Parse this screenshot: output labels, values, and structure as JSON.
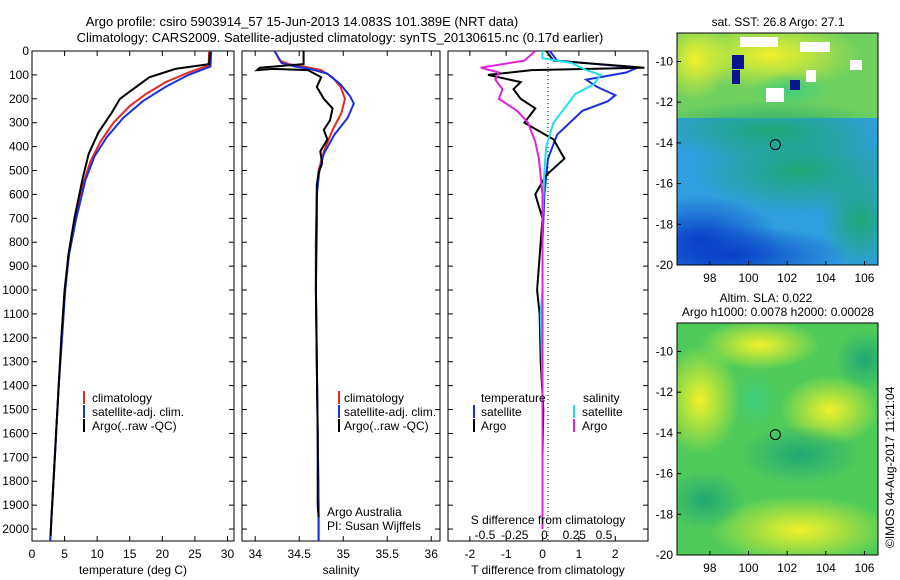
{
  "header": {
    "line1": "Argo profile: csiro 5903914_57 15-Jun-2013 14.083S 101.389E (NRT data)",
    "line2": "Climatology: CARS2009. Satellite-adjusted climatology: synTS_20130615.nc (0.17d earlier)"
  },
  "colors": {
    "climatology": "#e8281e",
    "satellite": "#1c2fe0",
    "argo": "#000000",
    "salinity_satellite": "#22e0e8",
    "salinity_argo": "#e020e0"
  },
  "credits": {
    "argo_line1": "Argo Australia",
    "argo_line2": "PI: Susan Wijffels",
    "imos": "©IMOS 04-Aug-2017 11:21:04"
  },
  "chart_data": [
    {
      "id": "temperature",
      "type": "line",
      "xlabel": "temperature (deg C)",
      "xlim": [
        0,
        31
      ],
      "xticks": [
        0,
        5,
        10,
        15,
        20,
        25,
        30
      ],
      "ylim": [
        2050,
        0
      ],
      "yticks": [
        0,
        100,
        200,
        300,
        400,
        500,
        600,
        700,
        800,
        900,
        1000,
        1100,
        1200,
        1300,
        1400,
        1500,
        1600,
        1700,
        1800,
        1900,
        2000
      ],
      "legend": [
        "climatology",
        "satellite-adj. clim.",
        "Argo(..raw -QC)"
      ],
      "series": [
        {
          "name": "climatology",
          "color_key": "climatology",
          "points": [
            [
              27.2,
              0
            ],
            [
              27.1,
              60
            ],
            [
              24,
              90
            ],
            [
              20.5,
              130
            ],
            [
              17.5,
              180
            ],
            [
              15,
              230
            ],
            [
              12.5,
              300
            ],
            [
              10.5,
              380
            ],
            [
              9,
              460
            ],
            [
              7.8,
              560
            ],
            [
              6.6,
              700
            ],
            [
              5.6,
              850
            ],
            [
              5.1,
              1000
            ],
            [
              4.6,
              1200
            ],
            [
              4.1,
              1400
            ],
            [
              3.7,
              1600
            ],
            [
              3.3,
              1800
            ],
            [
              3.0,
              1950
            ],
            [
              2.8,
              2050
            ]
          ]
        },
        {
          "name": "satellite-adj. clim.",
          "color_key": "satellite",
          "points": [
            [
              27.5,
              0
            ],
            [
              27.4,
              65
            ],
            [
              24,
              100
            ],
            [
              20.5,
              150
            ],
            [
              17,
              210
            ],
            [
              14,
              280
            ],
            [
              11.5,
              360
            ],
            [
              9.6,
              440
            ],
            [
              8.2,
              540
            ],
            [
              6.8,
              700
            ],
            [
              5.7,
              850
            ],
            [
              5.1,
              1000
            ],
            [
              4.6,
              1200
            ],
            [
              4.1,
              1400
            ],
            [
              3.7,
              1600
            ],
            [
              3.3,
              1800
            ],
            [
              3.0,
              1950
            ],
            [
              2.8,
              2050
            ]
          ]
        },
        {
          "name": "Argo(..raw -QC)",
          "color_key": "argo",
          "points": [
            [
              27.3,
              5
            ],
            [
              27.2,
              55
            ],
            [
              22,
              75
            ],
            [
              18,
              110
            ],
            [
              15.5,
              160
            ],
            [
              13.5,
              200
            ],
            [
              12.2,
              260
            ],
            [
              10.2,
              340
            ],
            [
              8.7,
              430
            ],
            [
              7.8,
              530
            ],
            [
              6.5,
              700
            ],
            [
              5.6,
              850
            ],
            [
              5.0,
              1000
            ],
            [
              4.5,
              1200
            ],
            [
              4.1,
              1400
            ],
            [
              3.7,
              1600
            ],
            [
              3.3,
              1800
            ],
            [
              3.0,
              1950
            ],
            [
              2.85,
              2030
            ]
          ]
        }
      ]
    },
    {
      "id": "salinity",
      "type": "line",
      "xlabel": "salinity",
      "xlim": [
        33.85,
        36.1
      ],
      "xticks": [
        34,
        34.5,
        35,
        35.5,
        36
      ],
      "ylim": [
        2050,
        0
      ],
      "legend": [
        "climatology",
        "satellite-adj. clim.",
        "Argo(..raw -QC)"
      ],
      "series": [
        {
          "name": "climatology",
          "color_key": "climatology",
          "points": [
            [
              34.22,
              0
            ],
            [
              34.28,
              40
            ],
            [
              34.38,
              55
            ],
            [
              34.55,
              65
            ],
            [
              34.75,
              80
            ],
            [
              34.88,
              110
            ],
            [
              34.97,
              150
            ],
            [
              35.02,
              200
            ],
            [
              34.98,
              260
            ],
            [
              34.88,
              330
            ],
            [
              34.78,
              420
            ],
            [
              34.72,
              500
            ],
            [
              34.7,
              600
            ],
            [
              34.69,
              800
            ],
            [
              34.69,
              1000
            ],
            [
              34.7,
              1300
            ],
            [
              34.71,
              1600
            ],
            [
              34.72,
              1900
            ],
            [
              34.72,
              2050
            ]
          ]
        },
        {
          "name": "satellite-adj. clim.",
          "color_key": "satellite",
          "points": [
            [
              34.22,
              0
            ],
            [
              34.3,
              50
            ],
            [
              34.45,
              65
            ],
            [
              34.62,
              75
            ],
            [
              34.82,
              95
            ],
            [
              34.97,
              140
            ],
            [
              35.08,
              190
            ],
            [
              35.12,
              220
            ],
            [
              35.05,
              280
            ],
            [
              34.9,
              350
            ],
            [
              34.78,
              430
            ],
            [
              34.73,
              500
            ],
            [
              34.7,
              600
            ],
            [
              34.69,
              800
            ],
            [
              34.69,
              1000
            ],
            [
              34.7,
              1300
            ],
            [
              34.71,
              1600
            ],
            [
              34.72,
              1900
            ],
            [
              34.72,
              2050
            ]
          ]
        },
        {
          "name": "Argo(..raw -QC)",
          "color_key": "argo",
          "points": [
            [
              34.55,
              0
            ],
            [
              34.55,
              55
            ],
            [
              34.05,
              70
            ],
            [
              34.02,
              80
            ],
            [
              34.2,
              75
            ],
            [
              34.6,
              80
            ],
            [
              34.75,
              110
            ],
            [
              34.7,
              150
            ],
            [
              34.78,
              200
            ],
            [
              34.88,
              240
            ],
            [
              34.85,
              290
            ],
            [
              34.78,
              330
            ],
            [
              34.82,
              370
            ],
            [
              34.74,
              420
            ],
            [
              34.76,
              470
            ],
            [
              34.72,
              510
            ],
            [
              34.7,
              560
            ],
            [
              34.7,
              700
            ],
            [
              34.69,
              1000
            ],
            [
              34.7,
              1300
            ],
            [
              34.71,
              1600
            ],
            [
              34.71,
              1900
            ],
            [
              34.72,
              1950
            ]
          ]
        }
      ]
    },
    {
      "id": "difference",
      "type": "line",
      "xlabel": "T difference from climatology",
      "xlabel_top": "S difference from climatology",
      "xlim": [
        -2.6,
        2.9
      ],
      "xticks": [
        -2,
        -1,
        0,
        1,
        2
      ],
      "top_ticks": [
        "-0.5",
        "-0.25",
        "0",
        "0.25",
        "0.5"
      ],
      "ylim": [
        2050,
        0
      ],
      "legend": {
        "temperature_title": "temperature",
        "salinity_title": "salinity",
        "temperature": [
          "satellite",
          "Argo"
        ],
        "salinity": [
          "satellite",
          "Argo"
        ]
      },
      "series": [
        {
          "name": "temperature satellite",
          "color_key": "satellite",
          "points": [
            [
              0.2,
              0
            ],
            [
              0.4,
              40
            ],
            [
              2.6,
              70
            ],
            [
              2.3,
              90
            ],
            [
              1.2,
              120
            ],
            [
              1.5,
              150
            ],
            [
              2.0,
              185
            ],
            [
              1.8,
              210
            ],
            [
              1.1,
              250
            ],
            [
              0.4,
              350
            ],
            [
              0.15,
              450
            ],
            [
              0.05,
              600
            ],
            [
              0.0,
              800
            ],
            [
              0.0,
              1200
            ],
            [
              0.0,
              1600
            ],
            [
              0.0,
              2000
            ]
          ]
        },
        {
          "name": "temperature Argo",
          "color_key": "argo",
          "points": [
            [
              0.1,
              0
            ],
            [
              0.3,
              40
            ],
            [
              2.8,
              70
            ],
            [
              -0.3,
              80
            ],
            [
              -1.5,
              100
            ],
            [
              -0.6,
              130
            ],
            [
              -0.8,
              160
            ],
            [
              -0.6,
              200
            ],
            [
              -0.2,
              240
            ],
            [
              -0.5,
              300
            ],
            [
              0.3,
              370
            ],
            [
              0.6,
              450
            ],
            [
              0.1,
              520
            ],
            [
              -0.2,
              600
            ],
            [
              0.0,
              700
            ],
            [
              -0.1,
              900
            ],
            [
              -0.15,
              1000
            ],
            [
              -0.08,
              1100
            ],
            [
              -0.05,
              1300
            ],
            [
              0.02,
              1500
            ],
            [
              0.0,
              1700
            ],
            [
              0.0,
              2000
            ]
          ]
        },
        {
          "name": "salinity satellite",
          "color_key": "salinity_satellite",
          "points": [
            [
              0.0,
              0
            ],
            [
              0.0,
              30
            ],
            [
              0.8,
              50
            ],
            [
              1.2,
              80
            ],
            [
              1.6,
              100
            ],
            [
              1.4,
              140
            ],
            [
              0.9,
              180
            ],
            [
              0.7,
              220
            ],
            [
              0.3,
              300
            ],
            [
              0.1,
              400
            ],
            [
              0.05,
              500
            ],
            [
              0.0,
              700
            ],
            [
              0.0,
              1000
            ],
            [
              -0.05,
              1100
            ],
            [
              0.0,
              1400
            ],
            [
              0.0,
              1700
            ],
            [
              0.0,
              2000
            ]
          ]
        },
        {
          "name": "salinity Argo",
          "color_key": "salinity_argo",
          "points": [
            [
              -0.2,
              0
            ],
            [
              -0.5,
              40
            ],
            [
              -1.7,
              70
            ],
            [
              -1.2,
              90
            ],
            [
              -1.3,
              120
            ],
            [
              -1.1,
              160
            ],
            [
              -1.2,
              200
            ],
            [
              -0.7,
              250
            ],
            [
              -0.4,
              300
            ],
            [
              -0.2,
              380
            ],
            [
              -0.1,
              450
            ],
            [
              0.0,
              600
            ],
            [
              0.0,
              800
            ],
            [
              0.0,
              1000
            ],
            [
              0.0,
              1300
            ],
            [
              0.0,
              1600
            ],
            [
              0.0,
              2000
            ]
          ]
        }
      ]
    },
    {
      "id": "sst_map",
      "type": "heatmap",
      "title": "sat. SST: 26.8  Argo: 27.1",
      "xlim": [
        96.3,
        106.7
      ],
      "ylim": [
        -20,
        -8.6
      ],
      "xticks": [
        98,
        100,
        102,
        104,
        106
      ],
      "yticks": [
        -10,
        -12,
        -14,
        -16,
        -18,
        -20
      ],
      "marker": [
        101.389,
        -14.083
      ]
    },
    {
      "id": "sla_map",
      "type": "heatmap",
      "title": "Altim. SLA: 0.022",
      "subtitle": "Argo h1000: 0.0078 h2000: 0.00028",
      "xlim": [
        96.3,
        106.7
      ],
      "ylim": [
        -20,
        -8.6
      ],
      "xticks": [
        98,
        100,
        102,
        104,
        106
      ],
      "yticks": [
        -10,
        -12,
        -14,
        -16,
        -18,
        -20
      ],
      "marker": [
        101.389,
        -14.083
      ]
    }
  ]
}
